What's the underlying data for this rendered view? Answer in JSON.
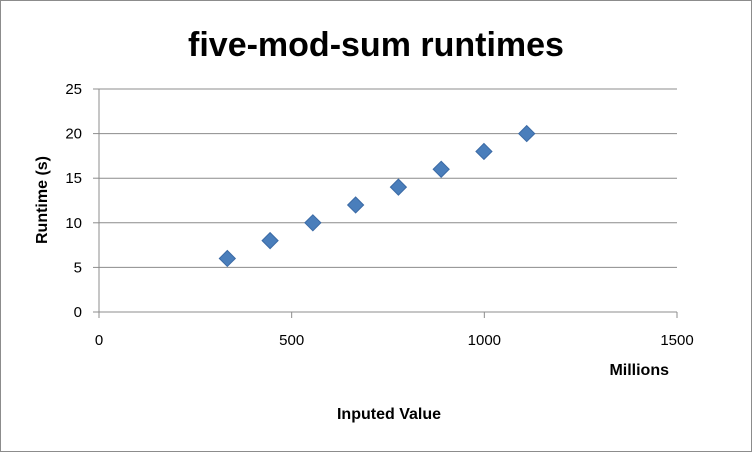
{
  "chart_data": {
    "type": "scatter",
    "title": "five-mod-sum runtimes",
    "xlabel": "Inputed Value",
    "ylabel": "Runtime (s)",
    "x_display_unit": "Millions",
    "xlim": [
      0,
      1500
    ],
    "ylim": [
      0,
      25
    ],
    "x_ticks": [
      "0",
      "500",
      "1000",
      "1500"
    ],
    "y_ticks": [
      "0",
      "5",
      "10",
      "15",
      "20",
      "25"
    ],
    "grid": true,
    "legend": false,
    "marker_color": "#4a7ebb",
    "series": [
      {
        "x": [
          333,
          444,
          555,
          666,
          777,
          888,
          999,
          1110
        ],
        "y": [
          6,
          8,
          10,
          12,
          14,
          16,
          18,
          20
        ]
      }
    ]
  }
}
